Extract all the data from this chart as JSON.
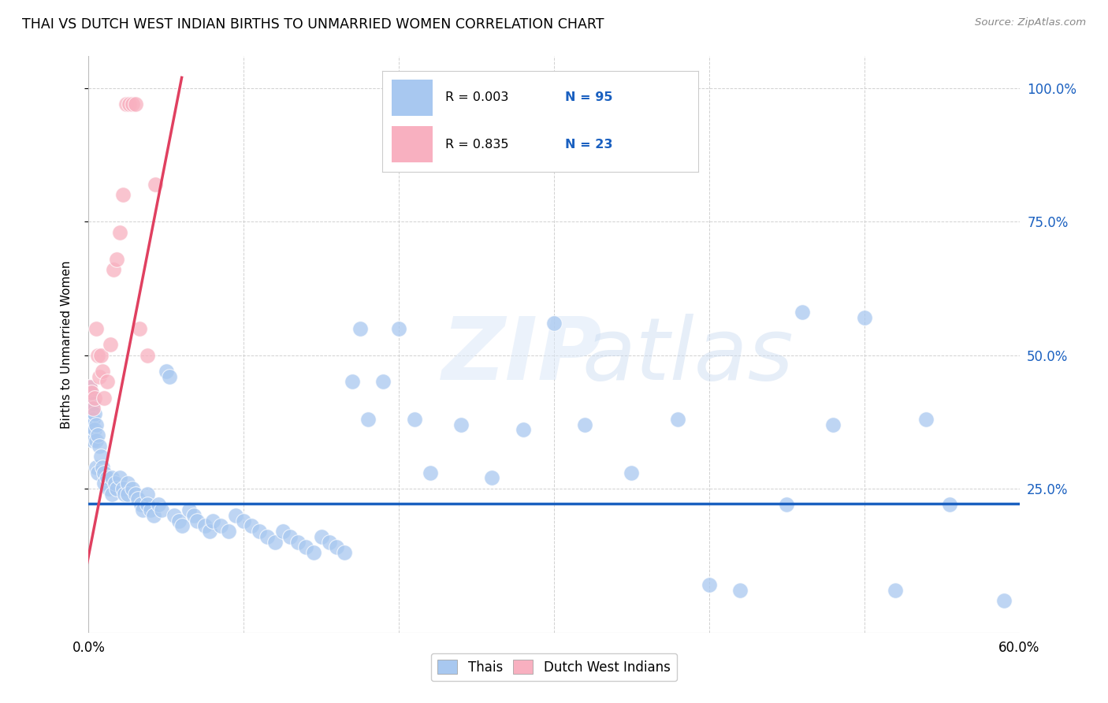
{
  "title": "THAI VS DUTCH WEST INDIAN BIRTHS TO UNMARRIED WOMEN CORRELATION CHART",
  "source": "Source: ZipAtlas.com",
  "ylabel": "Births to Unmarried Women",
  "xlim": [
    0.0,
    0.6
  ],
  "ylim": [
    -0.02,
    1.06
  ],
  "y_ticks": [
    0.25,
    0.5,
    0.75,
    1.0
  ],
  "y_tick_labels": [
    "25.0%",
    "50.0%",
    "75.0%",
    "100.0%"
  ],
  "x_ticks": [
    0.0,
    0.1,
    0.2,
    0.3,
    0.4,
    0.5,
    0.6
  ],
  "x_tick_labels": [
    "0.0%",
    "",
    "",
    "",
    "",
    "",
    "60.0%"
  ],
  "thai_R": 0.003,
  "thai_N": 95,
  "dutch_R": 0.835,
  "dutch_N": 23,
  "blue_color": "#a8c8f0",
  "blue_trend": "#1a60c0",
  "pink_color": "#f8b0c0",
  "pink_trend": "#e04060",
  "thai_trend_y": 0.222,
  "dutch_trend_x0": -0.005,
  "dutch_trend_y0": 0.05,
  "dutch_trend_x1": 0.06,
  "dutch_trend_y1": 1.02,
  "thai_x": [
    0.001,
    0.001,
    0.001,
    0.002,
    0.002,
    0.002,
    0.003,
    0.003,
    0.003,
    0.004,
    0.004,
    0.005,
    0.005,
    0.005,
    0.006,
    0.006,
    0.007,
    0.008,
    0.009,
    0.01,
    0.01,
    0.012,
    0.013,
    0.015,
    0.015,
    0.017,
    0.018,
    0.02,
    0.022,
    0.023,
    0.025,
    0.025,
    0.028,
    0.03,
    0.032,
    0.034,
    0.035,
    0.038,
    0.038,
    0.04,
    0.042,
    0.045,
    0.047,
    0.05,
    0.052,
    0.055,
    0.058,
    0.06,
    0.065,
    0.068,
    0.07,
    0.075,
    0.078,
    0.08,
    0.085,
    0.09,
    0.095,
    0.1,
    0.105,
    0.11,
    0.115,
    0.12,
    0.125,
    0.13,
    0.135,
    0.14,
    0.145,
    0.15,
    0.155,
    0.16,
    0.165,
    0.17,
    0.175,
    0.18,
    0.19,
    0.2,
    0.21,
    0.22,
    0.24,
    0.26,
    0.28,
    0.3,
    0.32,
    0.35,
    0.38,
    0.4,
    0.42,
    0.45,
    0.46,
    0.48,
    0.5,
    0.52,
    0.54,
    0.555,
    0.59
  ],
  "thai_y": [
    0.44,
    0.42,
    0.38,
    0.43,
    0.4,
    0.36,
    0.41,
    0.38,
    0.34,
    0.39,
    0.36,
    0.37,
    0.34,
    0.29,
    0.35,
    0.28,
    0.33,
    0.31,
    0.29,
    0.28,
    0.26,
    0.27,
    0.25,
    0.27,
    0.24,
    0.26,
    0.25,
    0.27,
    0.25,
    0.24,
    0.26,
    0.24,
    0.25,
    0.24,
    0.23,
    0.22,
    0.21,
    0.24,
    0.22,
    0.21,
    0.2,
    0.22,
    0.21,
    0.47,
    0.46,
    0.2,
    0.19,
    0.18,
    0.21,
    0.2,
    0.19,
    0.18,
    0.17,
    0.19,
    0.18,
    0.17,
    0.2,
    0.19,
    0.18,
    0.17,
    0.16,
    0.15,
    0.17,
    0.16,
    0.15,
    0.14,
    0.13,
    0.16,
    0.15,
    0.14,
    0.13,
    0.45,
    0.55,
    0.38,
    0.45,
    0.55,
    0.38,
    0.28,
    0.37,
    0.27,
    0.36,
    0.56,
    0.37,
    0.28,
    0.38,
    0.07,
    0.06,
    0.22,
    0.58,
    0.37,
    0.57,
    0.06,
    0.38,
    0.22,
    0.04
  ],
  "dutch_x": [
    0.001,
    0.002,
    0.003,
    0.004,
    0.005,
    0.006,
    0.007,
    0.008,
    0.009,
    0.01,
    0.012,
    0.014,
    0.016,
    0.018,
    0.02,
    0.022,
    0.024,
    0.026,
    0.028,
    0.03,
    0.033,
    0.038,
    0.043
  ],
  "dutch_y": [
    0.44,
    0.43,
    0.4,
    0.42,
    0.55,
    0.5,
    0.46,
    0.5,
    0.47,
    0.42,
    0.45,
    0.52,
    0.66,
    0.68,
    0.73,
    0.8,
    0.97,
    0.97,
    0.97,
    0.97,
    0.55,
    0.5,
    0.82
  ]
}
